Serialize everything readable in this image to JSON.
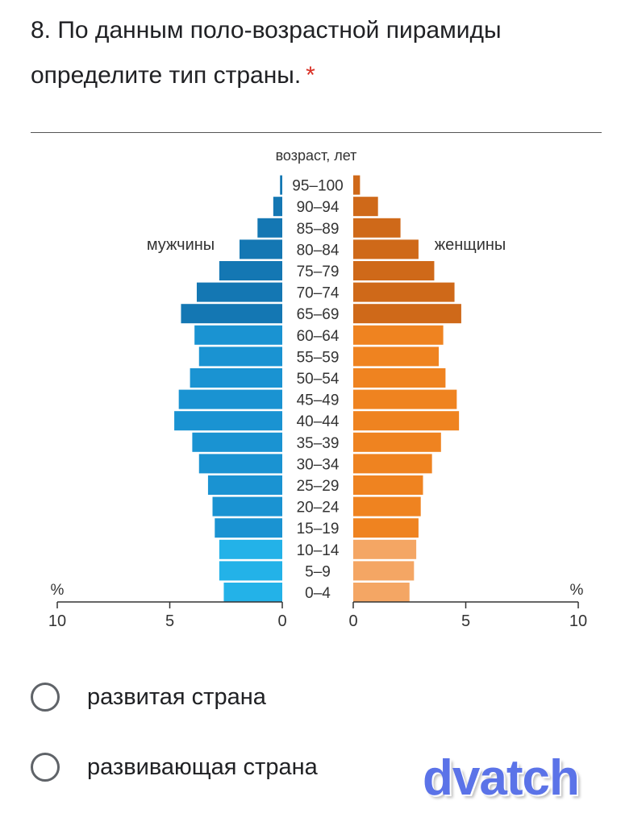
{
  "question": {
    "text": "8. По данным поло-возрастной пирамиды определите тип страны.",
    "required_mark": "*"
  },
  "chart_data": {
    "type": "bar",
    "title": "возраст, лет",
    "left_label": "мужчины",
    "right_label": "женщины",
    "categories": [
      "0–4",
      "5–9",
      "10–14",
      "15–19",
      "20–24",
      "25–29",
      "30–34",
      "35–39",
      "40–44",
      "45–49",
      "50–54",
      "55–59",
      "60–64",
      "65–69",
      "70–74",
      "75–79",
      "80–84",
      "85–89",
      "90–94",
      "95–100"
    ],
    "series": [
      {
        "name": "мужчины",
        "values": [
          2.6,
          2.8,
          2.8,
          3.0,
          3.1,
          3.3,
          3.7,
          4.0,
          4.8,
          4.6,
          4.1,
          3.7,
          3.9,
          4.5,
          3.8,
          2.8,
          1.9,
          1.1,
          0.4,
          0.1
        ]
      },
      {
        "name": "женщины",
        "values": [
          2.5,
          2.7,
          2.8,
          2.9,
          3.0,
          3.1,
          3.5,
          3.9,
          4.7,
          4.6,
          4.1,
          3.8,
          4.0,
          4.8,
          4.5,
          3.6,
          2.9,
          2.1,
          1.1,
          0.3
        ]
      }
    ],
    "xlim": [
      0,
      10
    ],
    "x_ticks": [
      "0",
      "5",
      "10"
    ],
    "axis_unit": "%",
    "colors": {
      "male_young": "#23b2e8",
      "male_adult": "#1a93d2",
      "male_old": "#1477b3",
      "female_young": "#f4a664",
      "female_adult": "#ef8320",
      "female_old": "#cf6919"
    }
  },
  "options": [
    {
      "label": "развитая страна"
    },
    {
      "label": "развивающая страна"
    }
  ],
  "watermark": "dvatch"
}
